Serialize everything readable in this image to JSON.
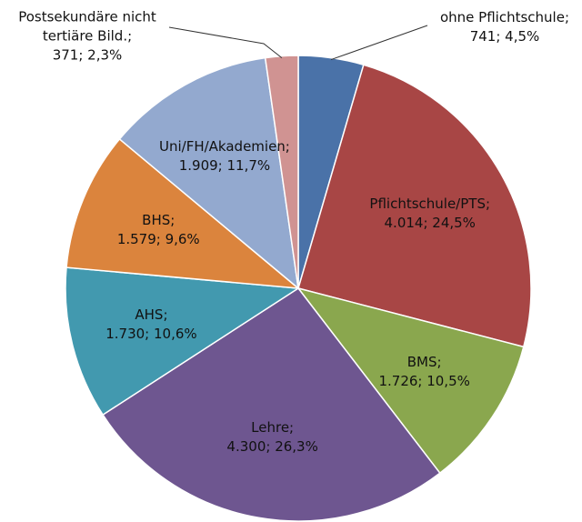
{
  "chart_data": {
    "type": "pie",
    "categories": [
      "ohne Pflichtschule;",
      "Pflichtschule/PTS;",
      "BMS;",
      "Lehre;",
      "AHS;",
      "BHS;",
      "Uni/FH/Akademien;",
      "Postsekundäre nicht tertiäre Bild.;"
    ],
    "values": [
      741,
      4014,
      1726,
      4300,
      1730,
      1579,
      1909,
      371
    ],
    "value_labels": [
      "741; 4,5%",
      "4.014; 24,5%",
      "1.726; 10,5%",
      "4.300; 26,3%",
      "1.730; 10,6%",
      "1.579; 9,6%",
      "1.909; 11,7%",
      "371; 2,3%"
    ],
    "colors": [
      "#4a72a8",
      "#a84645",
      "#8aa74e",
      "#6e5690",
      "#4299af",
      "#db843d",
      "#93a9cf",
      "#d09392"
    ]
  }
}
